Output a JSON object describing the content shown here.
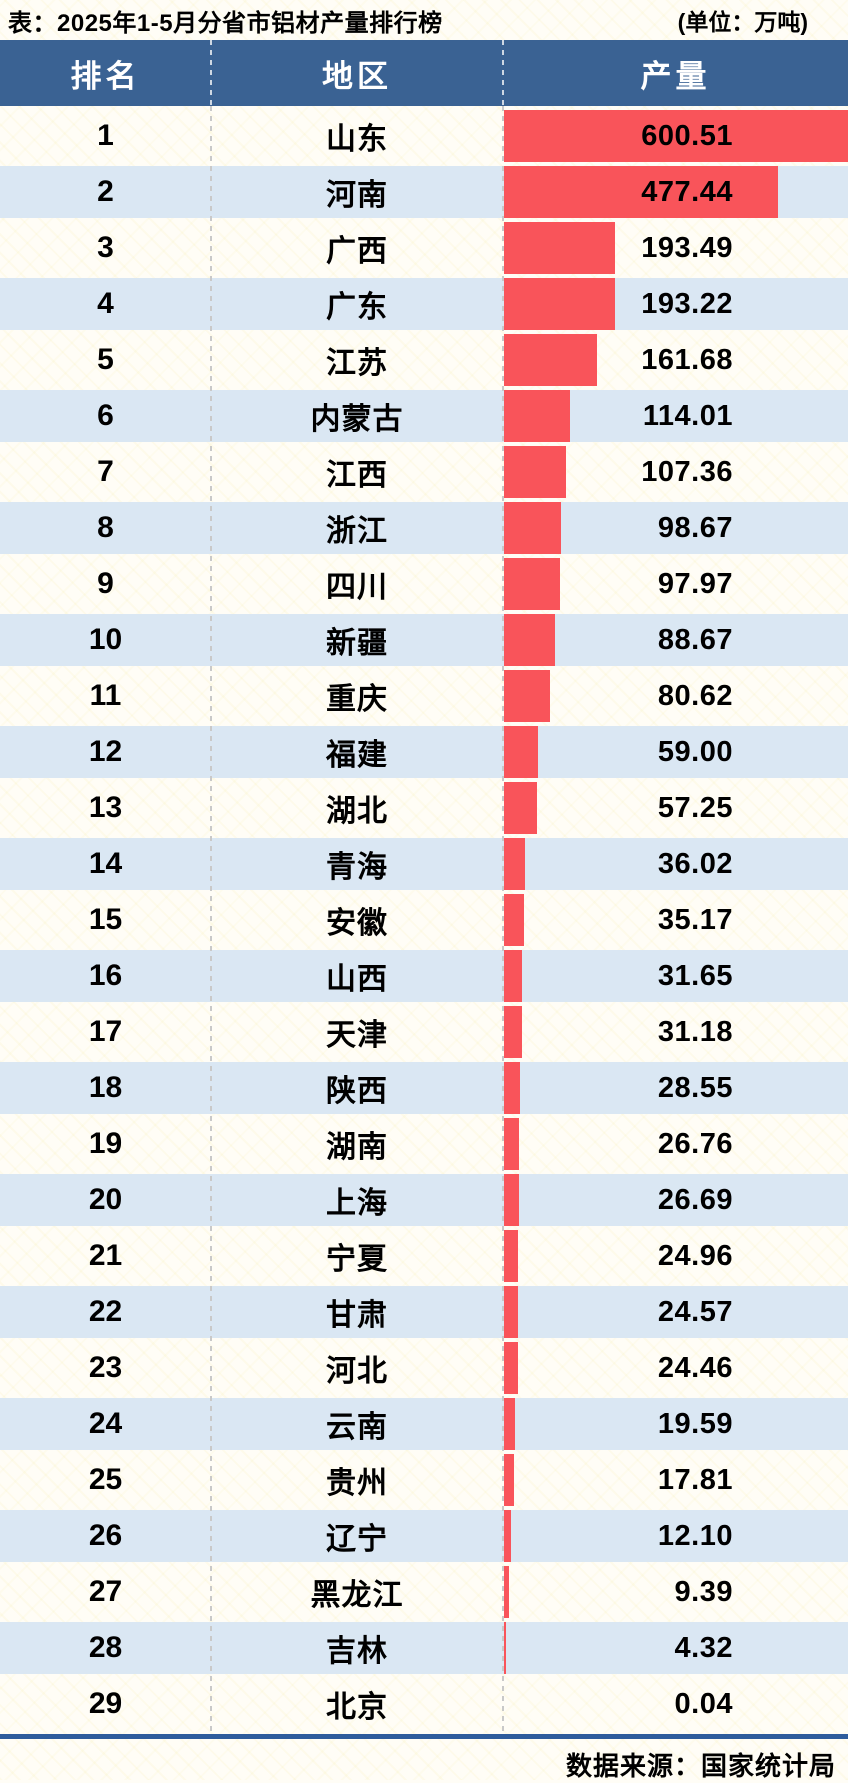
{
  "page": {
    "title": "表：2025年1-5月分省市铝材产量排行榜",
    "unit_label": "(单位：万吨)",
    "source_label": "数据来源：国家统计局"
  },
  "table": {
    "headers": {
      "rank": "排名",
      "region": "地区",
      "value": "产量"
    }
  },
  "colors": {
    "header_bg": "#3a6293",
    "bar_red": "#f9545a",
    "row_alt_blue": "#dae7f3",
    "footer_line_blue": "#2e5c9c",
    "page_bg": "#fffdf6",
    "header_text": "#ffffff",
    "body_text": "#000000"
  },
  "chart_data": {
    "type": "bar",
    "orientation": "horizontal",
    "title": "2025年1-5月分省市铝材产量排行榜",
    "unit": "万吨",
    "source": "国家统计局",
    "xlabel": "产量",
    "ylabel": "地区",
    "xlim": [
      0,
      600.51
    ],
    "grid": false,
    "legend": false,
    "value_labels": "2-decimal, right-aligned",
    "categories": [
      "山东",
      "河南",
      "广西",
      "广东",
      "江苏",
      "内蒙古",
      "江西",
      "浙江",
      "四川",
      "新疆",
      "重庆",
      "福建",
      "湖北",
      "青海",
      "安徽",
      "山西",
      "天津",
      "陕西",
      "湖南",
      "上海",
      "宁夏",
      "甘肃",
      "河北",
      "云南",
      "贵州",
      "辽宁",
      "黑龙江",
      "吉林",
      "北京"
    ],
    "values": [
      600.51,
      477.44,
      193.49,
      193.22,
      161.68,
      114.01,
      107.36,
      98.67,
      97.97,
      88.67,
      80.62,
      59.0,
      57.25,
      36.02,
      35.17,
      31.65,
      31.18,
      28.55,
      26.76,
      26.69,
      24.96,
      24.57,
      24.46,
      19.59,
      17.81,
      12.1,
      9.39,
      4.32,
      0.04
    ]
  }
}
